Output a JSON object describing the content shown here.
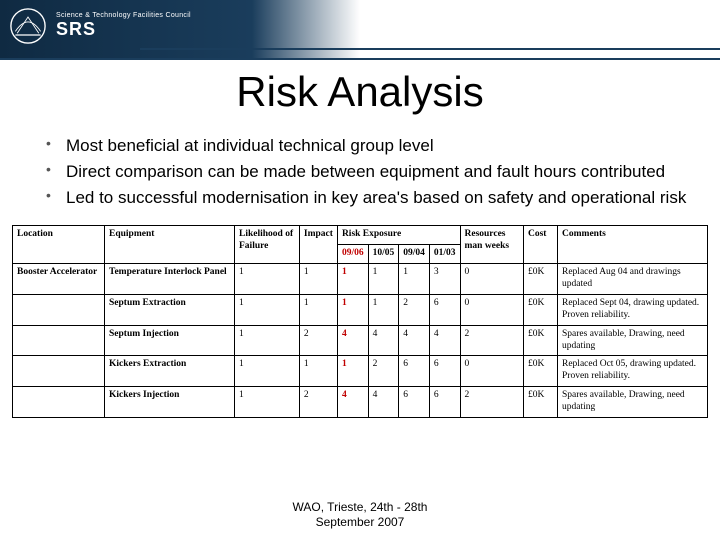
{
  "logo": {
    "top_text": "Science & Technology Facilities Council",
    "main_text": "SRS"
  },
  "title": "Risk Analysis",
  "bullets": [
    "Most beneficial at individual technical group level",
    "Direct comparison can be made between equipment and fault hours contributed",
    "Led to successful modernisation in key area's based on safety and operational risk"
  ],
  "table": {
    "columns": [
      "Location",
      "Equipment",
      "Likelihood of Failure",
      "Impact",
      "Risk Exposure",
      "Resources man weeks",
      "Cost",
      "Comments"
    ],
    "sub_years": [
      "09/06",
      "10/05",
      "09/04",
      "01/03"
    ],
    "rows": [
      {
        "location": "Booster Accelerator",
        "equipment": "Temperature Interlock Panel",
        "lof": "1",
        "impact": "1",
        "re": [
          "1",
          "1",
          "1",
          "3"
        ],
        "res": "0",
        "cost": "£0K",
        "comments": "Replaced Aug 04 and drawings updated"
      },
      {
        "location": "",
        "equipment": "Septum Extraction",
        "lof": "1",
        "impact": "1",
        "re": [
          "1",
          "1",
          "2",
          "6"
        ],
        "res": "0",
        "cost": "£0K",
        "comments": "Replaced Sept 04, drawing updated. Proven reliability."
      },
      {
        "location": "",
        "equipment": "Septum Injection",
        "lof": "1",
        "impact": "2",
        "re": [
          "4",
          "4",
          "4",
          "4"
        ],
        "res": "2",
        "cost": "£0K",
        "comments": "Spares available, Drawing, need updating"
      },
      {
        "location": "",
        "equipment": "Kickers Extraction",
        "lof": "1",
        "impact": "1",
        "re": [
          "1",
          "2",
          "6",
          "6"
        ],
        "res": "0",
        "cost": "£0K",
        "comments": "Replaced Oct 05, drawing updated. Proven reliability."
      },
      {
        "location": "",
        "equipment": "Kickers Injection",
        "lof": "1",
        "impact": "2",
        "re": [
          "4",
          "4",
          "6",
          "6"
        ],
        "res": "2",
        "cost": "£0K",
        "comments": "Spares available, Drawing, need updating"
      }
    ]
  },
  "footer": {
    "line1": "WAO, Trieste, 24th - 28th",
    "line2": "September 2007"
  },
  "colors": {
    "header_dark": "#0f2a42",
    "header_mid": "#1a3d5c",
    "red": "#c00000"
  }
}
